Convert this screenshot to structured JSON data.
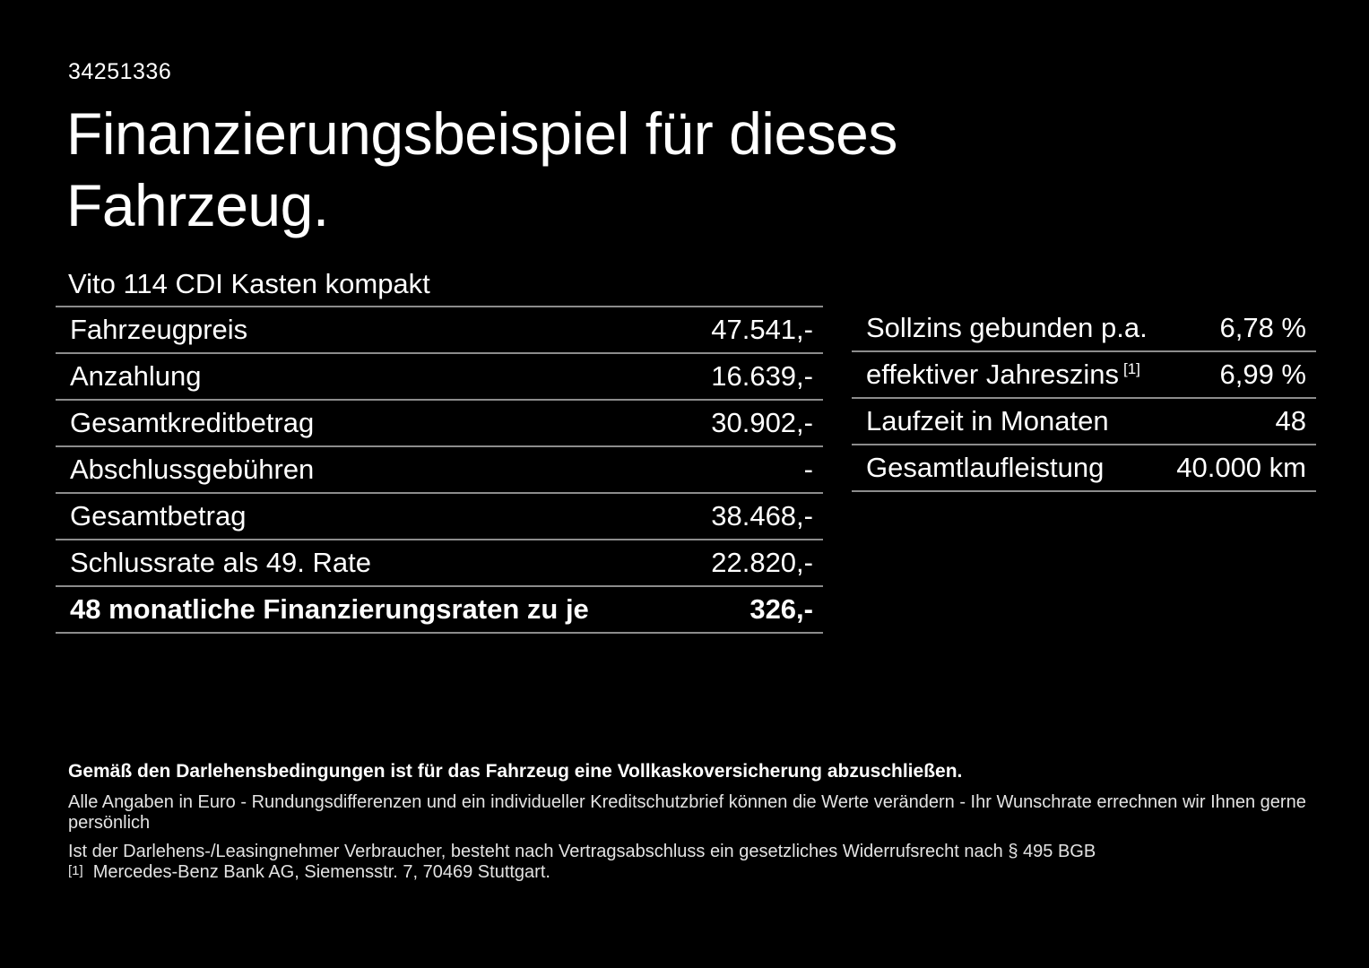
{
  "page": {
    "background_color": "#000000",
    "text_color": "#ffffff",
    "muted_text_color": "#e3e3e3",
    "divider_color": "#8c8c8c"
  },
  "header": {
    "vehicle_id": "34251336",
    "title_line1": "Finanzierungsbeispiel für dieses",
    "title_line2": "Fahrzeug.",
    "subtitle": "Vito 114 CDI Kasten kompakt"
  },
  "finance_table": {
    "rows": [
      {
        "label": "Fahrzeugpreis",
        "value": "47.541,-"
      },
      {
        "label": "Anzahlung",
        "value": "16.639,-"
      },
      {
        "label": "Gesamtkreditbetrag",
        "value": "30.902,-"
      },
      {
        "label": "Abschlussgebühren",
        "value": "-"
      },
      {
        "label": "Gesamtbetrag",
        "value": "38.468,-"
      },
      {
        "label": "Schlussrate als 49. Rate",
        "value": "22.820,-"
      },
      {
        "label": "48 monatliche Finanzierungsraten zu je",
        "value": "326,-"
      }
    ]
  },
  "conditions_table": {
    "rows": [
      {
        "label": "Sollzins gebunden p.a.",
        "value": "6,78 %"
      },
      {
        "label": "effektiver Jahreszins",
        "footnote_marker": "[1]",
        "value": "6,99 %"
      },
      {
        "label": "Laufzeit in Monaten",
        "value": "48"
      },
      {
        "label": "Gesamtlaufleistung",
        "value": "40.000 km"
      }
    ]
  },
  "footer": {
    "insurance_note": "Gemäß den Darlehensbedingungen ist für das Fahrzeug eine Vollkaskoversicherung abzuschließen.",
    "disclaimer_line1": "Alle Angaben in Euro - Rundungsdifferenzen und ein individueller Kreditschutzbrief können die Werte verändern - Ihr Wunschrate errechnen wir Ihnen gerne persönlich",
    "disclaimer_line2": "Ist der Darlehens-/Leasingnehmer Verbraucher, besteht nach Vertragsabschluss ein gesetzliches Widerrufsrecht nach § 495 BGB",
    "footnote_marker": "[1]",
    "footnote_text": "Mercedes-Benz Bank AG, Siemensstr. 7, 70469 Stuttgart."
  }
}
